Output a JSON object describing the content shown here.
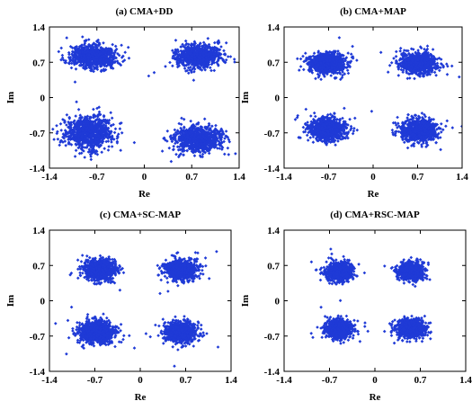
{
  "chart_data": [
    {
      "type": "scatter",
      "title": "(a) CMA+DD",
      "xlabel": "Re",
      "ylabel": "Im",
      "xlim": [
        -1.4,
        1.4
      ],
      "ylim": [
        -1.4,
        1.4
      ],
      "xticks": [
        "-1.4",
        "-0.7",
        "0",
        "0.7",
        "1.4"
      ],
      "yticks": [
        "1.4",
        "0.7",
        "0",
        "-0.7",
        "-1.4"
      ],
      "grid": false,
      "marker_color": "#1f3ad6",
      "clusters": [
        {
          "center": [
            -0.75,
            0.82
          ],
          "spread": [
            0.3,
            0.2
          ]
        },
        {
          "center": [
            0.8,
            0.82
          ],
          "spread": [
            0.3,
            0.2
          ]
        },
        {
          "center": [
            -0.82,
            -0.7
          ],
          "spread": [
            0.3,
            0.28
          ]
        },
        {
          "center": [
            0.8,
            -0.82
          ],
          "spread": [
            0.3,
            0.22
          ]
        }
      ]
    },
    {
      "type": "scatter",
      "title": "(b) CMA+MAP",
      "xlabel": "Re",
      "ylabel": "Im",
      "xlim": [
        -1.4,
        1.4
      ],
      "ylim": [
        -1.4,
        1.4
      ],
      "xticks": [
        "-1.4",
        "-0.7",
        "0",
        "0.7",
        "1.4"
      ],
      "yticks": [
        "1.4",
        "0.7",
        "0",
        "-0.7",
        "-1.4"
      ],
      "grid": false,
      "marker_color": "#1f3ad6",
      "clusters": [
        {
          "center": [
            -0.72,
            0.68
          ],
          "spread": [
            0.25,
            0.18
          ]
        },
        {
          "center": [
            0.72,
            0.68
          ],
          "spread": [
            0.25,
            0.18
          ]
        },
        {
          "center": [
            -0.72,
            -0.62
          ],
          "spread": [
            0.25,
            0.2
          ]
        },
        {
          "center": [
            0.72,
            -0.65
          ],
          "spread": [
            0.25,
            0.2
          ]
        }
      ]
    },
    {
      "type": "scatter",
      "title": "(c) CMA+SC-MAP",
      "xlabel": "Re",
      "ylabel": "Im",
      "xlim": [
        -1.4,
        1.4
      ],
      "ylim": [
        -1.4,
        1.4
      ],
      "xticks": [
        "-1.4",
        "-0.7",
        "0",
        "0.7",
        "1.4"
      ],
      "yticks": [
        "1.4",
        "0.7",
        "0",
        "-0.7",
        "-1.4"
      ],
      "grid": false,
      "marker_color": "#1f3ad6",
      "clusters": [
        {
          "center": [
            -0.62,
            0.62
          ],
          "spread": [
            0.22,
            0.17
          ]
        },
        {
          "center": [
            0.62,
            0.62
          ],
          "spread": [
            0.22,
            0.17
          ]
        },
        {
          "center": [
            -0.66,
            -0.62
          ],
          "spread": [
            0.24,
            0.2
          ]
        },
        {
          "center": [
            0.62,
            -0.62
          ],
          "spread": [
            0.22,
            0.18
          ]
        }
      ]
    },
    {
      "type": "scatter",
      "title": "(d) CMA+RSC-MAP",
      "xlabel": "Re",
      "ylabel": "Im",
      "xlim": [
        -1.4,
        1.4
      ],
      "ylim": [
        -1.4,
        1.4
      ],
      "xticks": [
        "-1.4",
        "-0.7",
        "0",
        "0.7",
        "1.4"
      ],
      "yticks": [
        "1.4",
        "0.7",
        "0",
        "-0.7",
        "-1.4"
      ],
      "grid": false,
      "marker_color": "#1f3ad6",
      "clusters": [
        {
          "center": [
            -0.55,
            0.58
          ],
          "spread": [
            0.18,
            0.15
          ]
        },
        {
          "center": [
            0.55,
            0.58
          ],
          "spread": [
            0.18,
            0.15
          ]
        },
        {
          "center": [
            -0.55,
            -0.55
          ],
          "spread": [
            0.19,
            0.16
          ]
        },
        {
          "center": [
            0.55,
            -0.55
          ],
          "spread": [
            0.19,
            0.16
          ]
        }
      ]
    }
  ]
}
